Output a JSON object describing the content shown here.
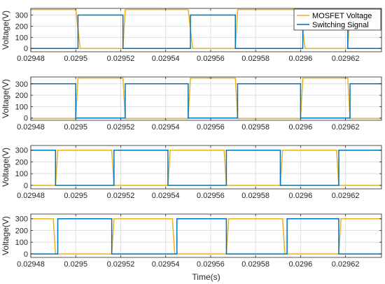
{
  "chart_data": {
    "type": "line",
    "xlabel": "Time(s)",
    "x_ticks": [
      0.02948,
      0.0295,
      0.02952,
      0.02954,
      0.02956,
      0.02958,
      0.0296,
      0.02962
    ],
    "x_tick_labels": [
      "0.02948",
      "0.0295",
      "0.02952",
      "0.02954",
      "0.02956",
      "0.02958",
      "0.0296",
      "0.02962"
    ],
    "xlim": [
      0.02948,
      0.029636
    ],
    "grid": true,
    "legend": {
      "placement": "top-right",
      "entries": [
        "MOSFET Voltage",
        "Switching Signal"
      ]
    },
    "colors": {
      "mosfet": "#EDB120",
      "switching": "#0072BD",
      "grid": "#dfdfdf",
      "axis": "#262626"
    },
    "panels": [
      {
        "ylabel": "Voltage(V)",
        "ylim": [
          -30,
          360
        ],
        "y_ticks": [
          0,
          100,
          200,
          300
        ],
        "y_tick_labels": [
          "0",
          "100",
          "200",
          "300"
        ],
        "show_legend": true,
        "series": [
          {
            "name": "MOSFET Voltage",
            "color": "#EDB120",
            "x": [
              0.02948,
              0.0295,
              0.029502,
              0.029521,
              0.029522,
              0.02955,
              0.029552,
              0.029571,
              0.029572,
              0.0296,
              0.029602,
              0.029621,
              0.029622,
              0.029636
            ],
            "y": [
              350,
              350,
              0,
              0,
              350,
              350,
              0,
              0,
              350,
              350,
              0,
              0,
              350,
              350
            ]
          },
          {
            "name": "Switching Signal",
            "color": "#0072BD",
            "x": [
              0.02948,
              0.029501,
              0.029501,
              0.029521,
              0.029521,
              0.029551,
              0.029551,
              0.029571,
              0.029571,
              0.029601,
              0.029601,
              0.029621,
              0.029621,
              0.029636
            ],
            "y": [
              0,
              0,
              300,
              300,
              0,
              0,
              300,
              300,
              0,
              0,
              300,
              300,
              0,
              0
            ]
          }
        ]
      },
      {
        "ylabel": "Voltage(V)",
        "ylim": [
          -20,
          360
        ],
        "y_ticks": [
          0,
          100,
          200,
          300
        ],
        "y_tick_labels": [
          "0",
          "100",
          "200",
          "300"
        ],
        "show_legend": false,
        "series": [
          {
            "name": "MOSFET Voltage",
            "color": "#EDB120",
            "x": [
              0.02948,
              0.0295,
              0.029501,
              0.029521,
              0.029522,
              0.02955,
              0.029551,
              0.029571,
              0.029572,
              0.0296,
              0.029601,
              0.029621,
              0.029622,
              0.029636
            ],
            "y": [
              -5,
              -5,
              350,
              350,
              -5,
              -5,
              350,
              350,
              -5,
              -5,
              350,
              350,
              -5,
              -5
            ]
          },
          {
            "name": "Switching Signal",
            "color": "#0072BD",
            "x": [
              0.02948,
              0.0295,
              0.0295,
              0.029522,
              0.029522,
              0.02955,
              0.02955,
              0.029572,
              0.029572,
              0.0296,
              0.0296,
              0.029622,
              0.029622,
              0.029636
            ],
            "y": [
              300,
              300,
              0,
              0,
              300,
              300,
              0,
              0,
              300,
              300,
              0,
              0,
              300,
              300
            ]
          }
        ]
      },
      {
        "ylabel": "Voltage(V)",
        "ylim": [
          -30,
          340
        ],
        "y_ticks": [
          0,
          100,
          200,
          300
        ],
        "y_tick_labels": [
          "0",
          "100",
          "200",
          "300"
        ],
        "show_legend": false,
        "series": [
          {
            "name": "MOSFET Voltage",
            "color": "#EDB120",
            "x": [
              0.02948,
              0.029491,
              0.029492,
              0.029516,
              0.029517,
              0.029541,
              0.029542,
              0.029566,
              0.029567,
              0.029591,
              0.029592,
              0.029616,
              0.029617,
              0.029636
            ],
            "y": [
              0,
              0,
              300,
              300,
              0,
              0,
              300,
              300,
              0,
              0,
              300,
              300,
              0,
              0
            ]
          },
          {
            "name": "Switching Signal",
            "color": "#0072BD",
            "x": [
              0.02948,
              0.029491,
              0.029491,
              0.029517,
              0.029517,
              0.029541,
              0.029541,
              0.029567,
              0.029567,
              0.029591,
              0.029591,
              0.029617,
              0.029617,
              0.029636
            ],
            "y": [
              300,
              300,
              0,
              0,
              300,
              300,
              0,
              0,
              300,
              300,
              0,
              0,
              300,
              300
            ]
          }
        ]
      },
      {
        "ylabel": "Voltage(V)",
        "ylim": [
          -30,
          340
        ],
        "y_ticks": [
          0,
          100,
          200,
          300
        ],
        "y_tick_labels": [
          "0",
          "100",
          "200",
          "300"
        ],
        "show_legend": false,
        "series": [
          {
            "name": "MOSFET Voltage",
            "color": "#EDB120",
            "x": [
              0.02948,
              0.02949,
              0.029491,
              0.029516,
              0.029517,
              0.029543,
              0.029544,
              0.029567,
              0.029568,
              0.029592,
              0.029593,
              0.029617,
              0.029618,
              0.029636
            ],
            "y": [
              300,
              300,
              0,
              0,
              300,
              300,
              0,
              0,
              300,
              300,
              0,
              0,
              300,
              300
            ]
          },
          {
            "name": "Switching Signal",
            "color": "#0072BD",
            "x": [
              0.02948,
              0.029492,
              0.029492,
              0.029516,
              0.029516,
              0.029545,
              0.029545,
              0.029567,
              0.029567,
              0.029594,
              0.029594,
              0.029617,
              0.029617,
              0.029636
            ],
            "y": [
              0,
              0,
              300,
              300,
              0,
              0,
              300,
              300,
              0,
              0,
              300,
              300,
              0,
              0
            ]
          }
        ]
      }
    ]
  }
}
